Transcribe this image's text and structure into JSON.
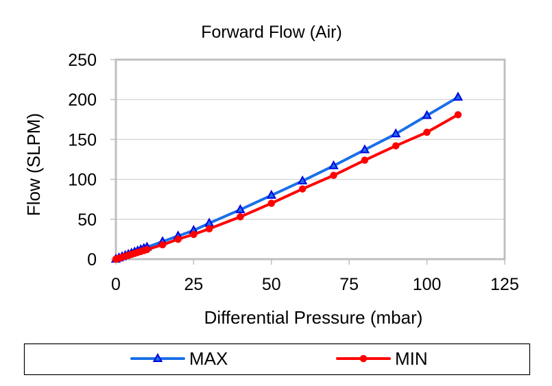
{
  "chart_data": {
    "type": "line",
    "title": "Forward Flow (Air)",
    "xlabel": "Differential Pressure (mbar)",
    "ylabel": "Flow (SLPM)",
    "xlim": [
      0,
      125
    ],
    "ylim": [
      0,
      250
    ],
    "xticks": [
      0,
      25,
      50,
      75,
      100,
      125
    ],
    "yticks": [
      0,
      50,
      100,
      150,
      200,
      250
    ],
    "xtick_labels": [
      "0",
      "25",
      "50",
      "75",
      "100",
      "125"
    ],
    "ytick_labels": [
      "0",
      "50",
      "100",
      "150",
      "200",
      "250"
    ],
    "grid": "horizontal",
    "legend": {
      "placement": "bottom",
      "entries": [
        "MAX",
        "MIN"
      ]
    },
    "series": [
      {
        "name": "MAX",
        "color": "#1a6fe8",
        "marker": "triangle",
        "marker_color": "#0000e0",
        "x": [
          0,
          1,
          2,
          3,
          4,
          5,
          6,
          7,
          8,
          9,
          10,
          15,
          20,
          25,
          30,
          40,
          50,
          60,
          70,
          80,
          90,
          100,
          110
        ],
        "y": [
          0,
          1.5,
          3,
          4.5,
          6,
          7.5,
          9,
          10.5,
          12,
          13.5,
          15,
          22,
          29,
          36,
          45,
          62,
          80,
          98,
          117,
          137,
          157,
          180,
          203
        ]
      },
      {
        "name": "MIN",
        "color": "#ff0000",
        "marker": "circle",
        "marker_color": "#ff0000",
        "x": [
          0,
          1,
          2,
          3,
          4,
          5,
          6,
          7,
          8,
          9,
          10,
          15,
          20,
          25,
          30,
          40,
          50,
          60,
          70,
          80,
          90,
          100,
          110
        ],
        "y": [
          0,
          1.2,
          2.4,
          3.6,
          4.8,
          6,
          7.2,
          8.4,
          9.6,
          10.8,
          12,
          18,
          25,
          31,
          38,
          53,
          70,
          88,
          105,
          124,
          142,
          159,
          181
        ]
      }
    ]
  }
}
